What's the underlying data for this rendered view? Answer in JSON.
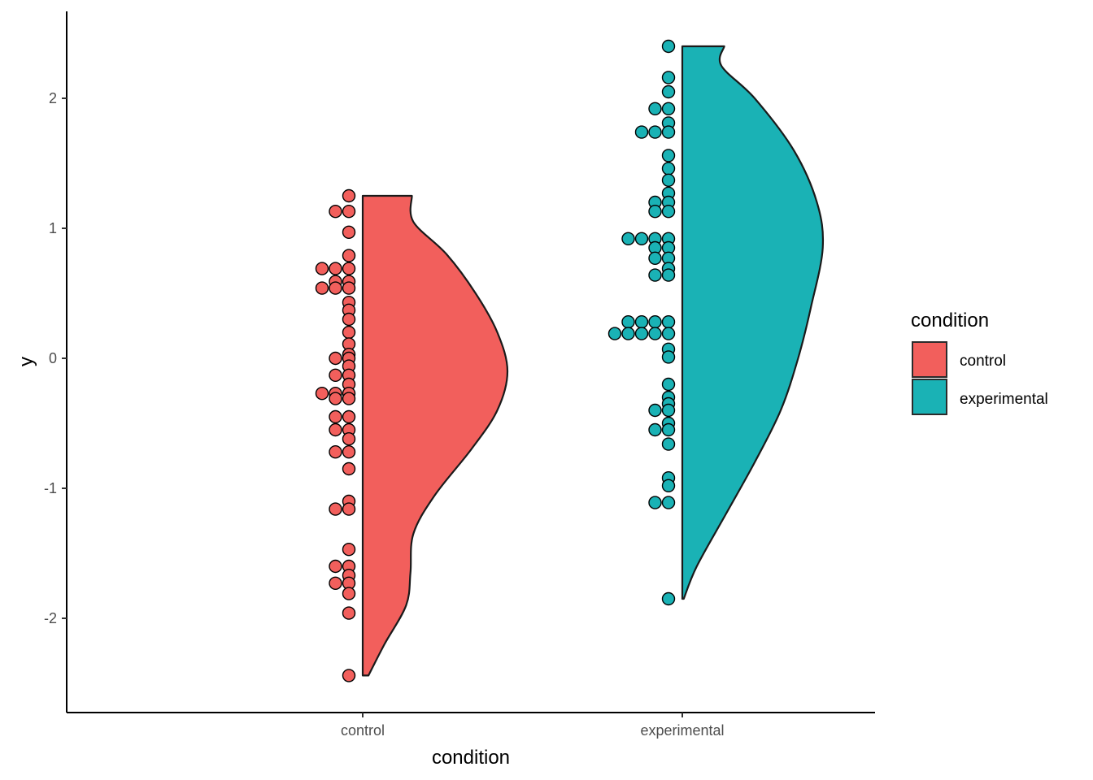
{
  "chart_data": {
    "type": "raincloud (half-violin + dot plot)",
    "xlabel": "condition",
    "ylabel": "y",
    "categories": [
      "control",
      "experimental"
    ],
    "ylim": [
      -2.65,
      2.7
    ],
    "yticks": [
      -2,
      -1,
      0,
      1,
      2
    ],
    "grid": false,
    "legend": {
      "title": "condition",
      "position": "right",
      "entries": [
        {
          "label": "control",
          "color": "#F8766D"
        },
        {
          "label": "experimental",
          "color": "#00BFC4"
        }
      ]
    },
    "colors": {
      "control": "#F25F5C",
      "experimental": "#1AB2B5",
      "outline": "#1a1a1a"
    },
    "series": [
      {
        "name": "control",
        "range": [
          -2.44,
          1.25
        ],
        "density": [
          [
            -2.44,
            0.04
          ],
          [
            -2.2,
            0.15
          ],
          [
            -1.9,
            0.3
          ],
          [
            -1.65,
            0.33
          ],
          [
            -1.35,
            0.35
          ],
          [
            -1.05,
            0.5
          ],
          [
            -0.7,
            0.75
          ],
          [
            -0.4,
            0.93
          ],
          [
            -0.1,
            1.0
          ],
          [
            0.2,
            0.93
          ],
          [
            0.5,
            0.78
          ],
          [
            0.8,
            0.58
          ],
          [
            1.05,
            0.35
          ],
          [
            1.25,
            0.34
          ]
        ],
        "points": [
          {
            "y": 1.25,
            "n": 1
          },
          {
            "y": 1.13,
            "n": 2
          },
          {
            "y": 0.97,
            "n": 1
          },
          {
            "y": 0.79,
            "n": 1
          },
          {
            "y": 0.69,
            "n": 3
          },
          {
            "y": 0.59,
            "n": 2
          },
          {
            "y": 0.54,
            "n": 3
          },
          {
            "y": 0.43,
            "n": 1
          },
          {
            "y": 0.37,
            "n": 1
          },
          {
            "y": 0.3,
            "n": 1
          },
          {
            "y": 0.2,
            "n": 1
          },
          {
            "y": 0.11,
            "n": 1
          },
          {
            "y": 0.03,
            "n": 1
          },
          {
            "y": 0.0,
            "n": 2
          },
          {
            "y": -0.06,
            "n": 1
          },
          {
            "y": -0.13,
            "n": 2
          },
          {
            "y": -0.2,
            "n": 1
          },
          {
            "y": -0.27,
            "n": 3
          },
          {
            "y": -0.31,
            "n": 2
          },
          {
            "y": -0.45,
            "n": 2
          },
          {
            "y": -0.55,
            "n": 2
          },
          {
            "y": -0.62,
            "n": 1
          },
          {
            "y": -0.72,
            "n": 2
          },
          {
            "y": -0.85,
            "n": 1
          },
          {
            "y": -1.1,
            "n": 1
          },
          {
            "y": -1.16,
            "n": 2
          },
          {
            "y": -1.47,
            "n": 1
          },
          {
            "y": -1.6,
            "n": 2
          },
          {
            "y": -1.67,
            "n": 1
          },
          {
            "y": -1.73,
            "n": 2
          },
          {
            "y": -1.81,
            "n": 1
          },
          {
            "y": -1.96,
            "n": 1
          },
          {
            "y": -2.44,
            "n": 1
          }
        ]
      },
      {
        "name": "experimental",
        "range": [
          -1.85,
          2.4
        ],
        "density": [
          [
            -1.85,
            0.01
          ],
          [
            -1.6,
            0.1
          ],
          [
            -1.2,
            0.3
          ],
          [
            -0.8,
            0.5
          ],
          [
            -0.4,
            0.68
          ],
          [
            0.0,
            0.8
          ],
          [
            0.4,
            0.89
          ],
          [
            0.85,
            0.97
          ],
          [
            1.2,
            0.93
          ],
          [
            1.6,
            0.77
          ],
          [
            2.0,
            0.5
          ],
          [
            2.25,
            0.27
          ],
          [
            2.4,
            0.29
          ]
        ],
        "points": [
          {
            "y": 2.4,
            "n": 1
          },
          {
            "y": 2.16,
            "n": 1
          },
          {
            "y": 2.05,
            "n": 1
          },
          {
            "y": 1.92,
            "n": 2
          },
          {
            "y": 1.81,
            "n": 1
          },
          {
            "y": 1.74,
            "n": 3
          },
          {
            "y": 1.56,
            "n": 1
          },
          {
            "y": 1.46,
            "n": 1
          },
          {
            "y": 1.37,
            "n": 1
          },
          {
            "y": 1.27,
            "n": 1
          },
          {
            "y": 1.2,
            "n": 2
          },
          {
            "y": 1.13,
            "n": 2
          },
          {
            "y": 0.92,
            "n": 4
          },
          {
            "y": 0.85,
            "n": 2
          },
          {
            "y": 0.77,
            "n": 2
          },
          {
            "y": 0.69,
            "n": 1
          },
          {
            "y": 0.64,
            "n": 2
          },
          {
            "y": 0.28,
            "n": 4
          },
          {
            "y": 0.19,
            "n": 5
          },
          {
            "y": 0.07,
            "n": 1
          },
          {
            "y": 0.01,
            "n": 1
          },
          {
            "y": -0.2,
            "n": 1
          },
          {
            "y": -0.3,
            "n": 1
          },
          {
            "y": -0.35,
            "n": 1
          },
          {
            "y": -0.4,
            "n": 2
          },
          {
            "y": -0.5,
            "n": 1
          },
          {
            "y": -0.55,
            "n": 2
          },
          {
            "y": -0.66,
            "n": 1
          },
          {
            "y": -0.92,
            "n": 1
          },
          {
            "y": -0.98,
            "n": 1
          },
          {
            "y": -1.11,
            "n": 2
          },
          {
            "y": -1.85,
            "n": 1
          }
        ]
      }
    ]
  }
}
